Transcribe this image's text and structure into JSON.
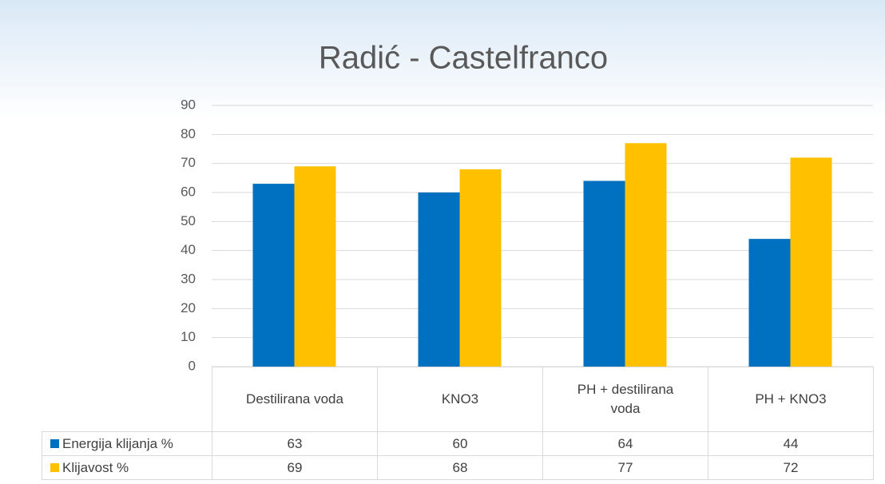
{
  "chart_data": {
    "type": "bar",
    "title": "Radić - Castelfranco",
    "categories": [
      "Destilirana voda",
      "KNO3",
      "PH + destilirana voda",
      "PH + KNO3"
    ],
    "series": [
      {
        "name": "Energija klijanja %",
        "color": "#0070c0",
        "values": [
          63,
          60,
          64,
          44
        ]
      },
      {
        "name": "Klijavost %",
        "color": "#ffc000",
        "values": [
          69,
          68,
          77,
          72
        ]
      }
    ],
    "ylim": [
      0,
      90
    ],
    "yticks": [
      0,
      10,
      20,
      30,
      40,
      50,
      60,
      70,
      80,
      90
    ],
    "grid": true,
    "data_table": true
  }
}
